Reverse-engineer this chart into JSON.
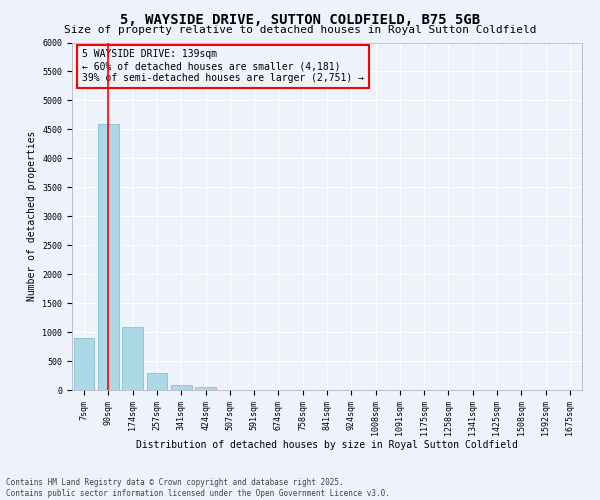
{
  "title": "5, WAYSIDE DRIVE, SUTTON COLDFIELD, B75 5GB",
  "subtitle": "Size of property relative to detached houses in Royal Sutton Coldfield",
  "xlabel": "Distribution of detached houses by size in Royal Sutton Coldfield",
  "ylabel": "Number of detached properties",
  "categories": [
    "7sqm",
    "90sqm",
    "174sqm",
    "257sqm",
    "341sqm",
    "424sqm",
    "507sqm",
    "591sqm",
    "674sqm",
    "758sqm",
    "841sqm",
    "924sqm",
    "1008sqm",
    "1091sqm",
    "1175sqm",
    "1258sqm",
    "1341sqm",
    "1425sqm",
    "1508sqm",
    "1592sqm",
    "1675sqm"
  ],
  "values": [
    900,
    4600,
    1080,
    290,
    80,
    50,
    0,
    0,
    0,
    0,
    0,
    0,
    0,
    0,
    0,
    0,
    0,
    0,
    0,
    0,
    0
  ],
  "bar_color": "#add8e6",
  "bar_edge_color": "#7ab8d4",
  "vline_x_index": 1,
  "vline_color": "red",
  "annotation_text": "5 WAYSIDE DRIVE: 139sqm\n← 60% of detached houses are smaller (4,181)\n39% of semi-detached houses are larger (2,751) →",
  "box_color": "red",
  "ylim": [
    0,
    6000
  ],
  "yticks": [
    0,
    500,
    1000,
    1500,
    2000,
    2500,
    3000,
    3500,
    4000,
    4500,
    5000,
    5500,
    6000
  ],
  "footer": "Contains HM Land Registry data © Crown copyright and database right 2025.\nContains public sector information licensed under the Open Government Licence v3.0.",
  "bg_color": "#eef2fb",
  "grid_color": "#ffffff",
  "title_fontsize": 10,
  "subtitle_fontsize": 8,
  "axis_label_fontsize": 7,
  "tick_fontsize": 6,
  "annotation_fontsize": 7,
  "footer_fontsize": 5.5
}
